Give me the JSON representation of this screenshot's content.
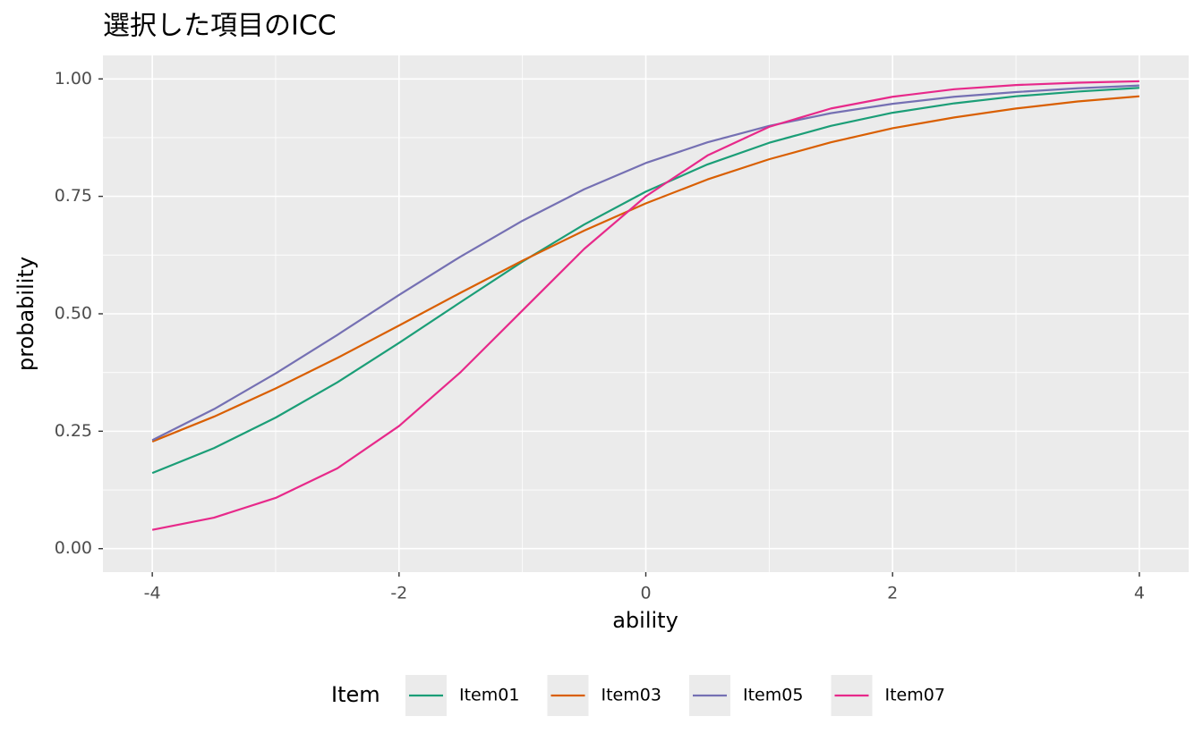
{
  "chart_data": {
    "type": "line",
    "title": "選択した項目のICC",
    "x_label": "ability",
    "y_label": "probability",
    "legend_title": "Item",
    "legend_position": "bottom",
    "grid": true,
    "x": [
      -4,
      -3.5,
      -3,
      -2.5,
      -2,
      -1.5,
      -1,
      -0.5,
      0,
      0.5,
      1,
      1.5,
      2,
      2.5,
      3,
      3.5,
      4
    ],
    "series": [
      {
        "name": "Item01",
        "color": "#1b9e77",
        "values": [
          0.161,
          0.214,
          0.279,
          0.354,
          0.438,
          0.525,
          0.611,
          0.69,
          0.76,
          0.818,
          0.864,
          0.9,
          0.928,
          0.948,
          0.963,
          0.973,
          0.981
        ]
      },
      {
        "name": "Item03",
        "color": "#d95f02",
        "values": [
          0.228,
          0.281,
          0.341,
          0.406,
          0.475,
          0.545,
          0.613,
          0.677,
          0.735,
          0.786,
          0.829,
          0.865,
          0.895,
          0.918,
          0.937,
          0.952,
          0.963
        ]
      },
      {
        "name": "Item05",
        "color": "#7570b3",
        "values": [
          0.231,
          0.297,
          0.373,
          0.455,
          0.54,
          0.622,
          0.698,
          0.765,
          0.821,
          0.865,
          0.9,
          0.927,
          0.947,
          0.962,
          0.972,
          0.98,
          0.986
        ]
      },
      {
        "name": "Item07",
        "color": "#e7298a",
        "values": [
          0.04,
          0.066,
          0.108,
          0.171,
          0.261,
          0.376,
          0.507,
          0.638,
          0.75,
          0.837,
          0.898,
          0.937,
          0.962,
          0.978,
          0.987,
          0.992,
          0.995
        ]
      }
    ],
    "xlim": [
      -4.4,
      4.4
    ],
    "xticks": [
      -4,
      -2,
      0,
      2,
      4
    ],
    "x_minor_ticks": [
      -3,
      -1,
      1,
      3
    ],
    "ylim": [
      -0.05,
      1.05
    ],
    "yticks": [
      {
        "value": 0,
        "label": "0.00"
      },
      {
        "value": 0.25,
        "label": "0.25"
      },
      {
        "value": 0.5,
        "label": "0.50"
      },
      {
        "value": 0.75,
        "label": "0.75"
      },
      {
        "value": 1,
        "label": "1.00"
      }
    ],
    "y_minor_ticks": [
      0.125,
      0.375,
      0.625,
      0.875
    ]
  }
}
